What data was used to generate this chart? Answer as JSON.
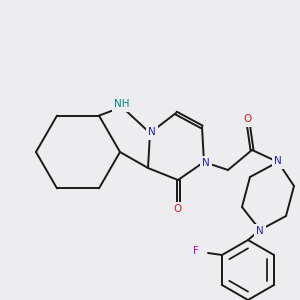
{
  "background_color": "#ededf0",
  "atoms": {
    "NH": {
      "color": "#008888"
    },
    "N": {
      "color": "#2222bb"
    },
    "O": {
      "color": "#cc2020"
    },
    "F": {
      "color": "#cc00cc"
    },
    "C": {
      "color": "#1a1a1a"
    }
  },
  "lw": 1.4
}
